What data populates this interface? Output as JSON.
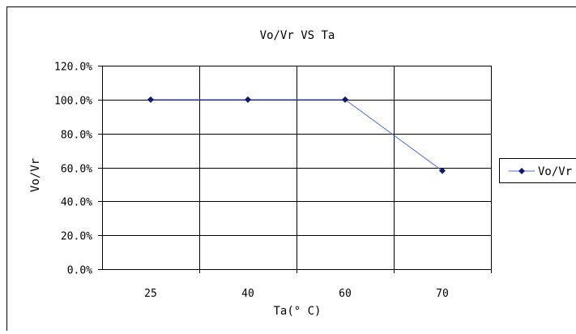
{
  "chart_data": {
    "type": "line",
    "title": "Vo/Vr VS Ta",
    "xlabel": "Ta(° C)",
    "ylabel": "Vo/Vr",
    "categories": [
      "25",
      "40",
      "60",
      "70"
    ],
    "series": [
      {
        "name": "Vo/Vr",
        "values": [
          100,
          100,
          100,
          58
        ]
      }
    ],
    "ylim": [
      0,
      120
    ],
    "yticks": [
      "0.0%",
      "20.0%",
      "40.0%",
      "60.0%",
      "80.0%",
      "100.0%",
      "120.0%"
    ],
    "grid": true,
    "legend": "right",
    "line_color": "#4f6bed",
    "marker_color": "#0d1a70"
  }
}
